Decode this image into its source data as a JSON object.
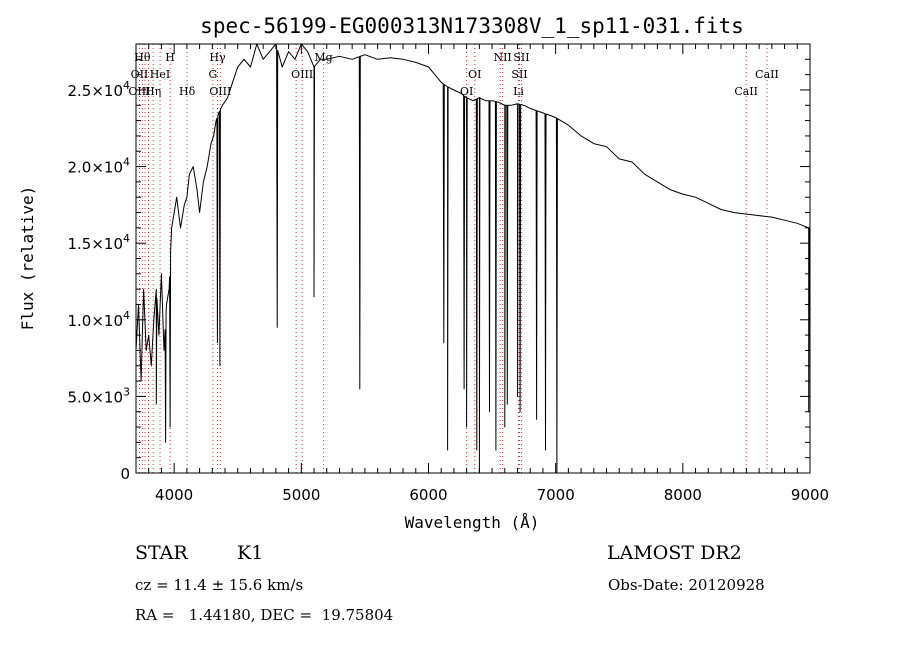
{
  "chart_data": {
    "type": "line",
    "title": "spec-56199-EG000313N173308V_1_sp11-031.fits",
    "xlabel": "Wavelength (Å)",
    "ylabel": "Flux (relative)",
    "xlim": [
      3700,
      9000
    ],
    "ylim": [
      0,
      28000
    ],
    "grid": false,
    "legend": "none",
    "x_ticks": [
      {
        "value": 4000,
        "label": "4000"
      },
      {
        "value": 5000,
        "label": "5000"
      },
      {
        "value": 6000,
        "label": "6000"
      },
      {
        "value": 7000,
        "label": "7000"
      },
      {
        "value": 8000,
        "label": "8000"
      },
      {
        "value": 9000,
        "label": "9000"
      }
    ],
    "y_ticks": [
      {
        "value": 0,
        "mant": "0",
        "exp": ""
      },
      {
        "value": 5000,
        "mant": "5.0×10",
        "exp": "3"
      },
      {
        "value": 10000,
        "mant": "1.0×10",
        "exp": "4"
      },
      {
        "value": 15000,
        "mant": "1.5×10",
        "exp": "4"
      },
      {
        "value": 20000,
        "mant": "2.0×10",
        "exp": "4"
      },
      {
        "value": 25000,
        "mant": "2.5×10",
        "exp": "4"
      }
    ],
    "series": [
      {
        "x": [
          3700,
          3720,
          3740,
          3760,
          3780,
          3800,
          3820,
          3840,
          3860,
          3880,
          3900,
          3920,
          3940,
          3960,
          3980,
          4000,
          4020,
          4050,
          4080,
          4100,
          4120,
          4150,
          4180,
          4200,
          4230,
          4260,
          4290,
          4310,
          4330,
          4350,
          4380,
          4420,
          4460,
          4500,
          4550,
          4600,
          4650,
          4700,
          4750,
          4800,
          4850,
          4900,
          4950,
          5000,
          5050,
          5100,
          5150,
          5200,
          5300,
          5400,
          5500,
          5600,
          5700,
          5800,
          5900,
          6000,
          6050,
          6100,
          6150,
          6200,
          6250,
          6300,
          6350,
          6400,
          6450,
          6500,
          6550,
          6600,
          6650,
          6700,
          6750,
          6800,
          6900,
          7000,
          7100,
          7200,
          7300,
          7400,
          7500,
          7600,
          7700,
          7800,
          7900,
          8000,
          8100,
          8200,
          8300,
          8400,
          8500,
          8600,
          8700,
          8800,
          8900,
          8990
        ],
        "y": [
          8000,
          11000,
          6000,
          12000,
          8000,
          9000,
          7000,
          10000,
          12000,
          9000,
          13000,
          8000,
          11000,
          12000,
          16000,
          17000,
          18000,
          16000,
          17500,
          18000,
          19500,
          20000,
          18500,
          17000,
          19000,
          20000,
          21500,
          22000,
          23000,
          23500,
          24000,
          24500,
          25500,
          26500,
          27000,
          26500,
          28000,
          27000,
          27500,
          28000,
          26500,
          27500,
          27000,
          28000,
          27500,
          26500,
          27000,
          27000,
          27200,
          27000,
          27300,
          27000,
          27100,
          27000,
          26800,
          26500,
          26000,
          25500,
          25200,
          25000,
          24800,
          24500,
          24300,
          24500,
          24300,
          24300,
          24200,
          24000,
          24000,
          24100,
          24000,
          23800,
          23500,
          23200,
          22700,
          22000,
          21500,
          21300,
          20500,
          20300,
          19500,
          19000,
          18500,
          18200,
          18000,
          17600,
          17200,
          17000,
          16900,
          16800,
          16700,
          16500,
          16300,
          16000
        ]
      }
    ],
    "absorption_dips": [
      {
        "x": 3860,
        "y": 4500
      },
      {
        "x": 3933,
        "y": 2000
      },
      {
        "x": 3968,
        "y": 3000
      },
      {
        "x": 4340,
        "y": 8500
      },
      {
        "x": 4360,
        "y": 7000
      },
      {
        "x": 4810,
        "y": 9500
      },
      {
        "x": 5100,
        "y": 11500
      },
      {
        "x": 5460,
        "y": 5500
      },
      {
        "x": 6120,
        "y": 8500
      },
      {
        "x": 6150,
        "y": 1500
      },
      {
        "x": 6280,
        "y": 5500
      },
      {
        "x": 6300,
        "y": 3000
      },
      {
        "x": 6380,
        "y": 1500
      },
      {
        "x": 6400,
        "y": 0
      },
      {
        "x": 6480,
        "y": 4000
      },
      {
        "x": 6530,
        "y": 1500
      },
      {
        "x": 6600,
        "y": 3000
      },
      {
        "x": 6620,
        "y": 4500
      },
      {
        "x": 6700,
        "y": 5000
      },
      {
        "x": 6720,
        "y": 4000
      },
      {
        "x": 6850,
        "y": 3500
      },
      {
        "x": 6920,
        "y": 1500
      },
      {
        "x": 7010,
        "y": 0
      },
      {
        "x": 8990,
        "y": 4000
      }
    ],
    "line_markers": [
      {
        "x": 3727,
        "labels": [
          {
            "text": "OII",
            "row": 2
          },
          {
            "text": "OIII",
            "row": 3
          }
        ]
      },
      {
        "x": 3750,
        "labels": [
          {
            "text": "Hθ",
            "row": 1
          }
        ]
      },
      {
        "x": 3771,
        "labels": []
      },
      {
        "x": 3798,
        "labels": []
      },
      {
        "x": 3835,
        "labels": [
          {
            "text": "Hη",
            "row": 3
          }
        ]
      },
      {
        "x": 3889,
        "labels": [
          {
            "text": "HeI",
            "row": 2
          }
        ]
      },
      {
        "x": 3968,
        "labels": [
          {
            "text": "H",
            "row": 1
          }
        ]
      },
      {
        "x": 4102,
        "labels": [
          {
            "text": "Hδ",
            "row": 3
          }
        ]
      },
      {
        "x": 4305,
        "labels": [
          {
            "text": "G",
            "row": 2
          }
        ]
      },
      {
        "x": 4341,
        "labels": [
          {
            "text": "Hγ",
            "row": 1
          }
        ]
      },
      {
        "x": 4363,
        "labels": [
          {
            "text": "OIII",
            "row": 3
          }
        ]
      },
      {
        "x": 4959,
        "labels": []
      },
      {
        "x": 5007,
        "labels": [
          {
            "text": "OIII",
            "row": 2
          }
        ]
      },
      {
        "x": 5175,
        "labels": [
          {
            "text": "Mg",
            "row": 1
          }
        ]
      },
      {
        "x": 6300,
        "labels": [
          {
            "text": "OI",
            "row": 3
          }
        ]
      },
      {
        "x": 6364,
        "labels": [
          {
            "text": "OI",
            "row": 2
          }
        ]
      },
      {
        "x": 6563,
        "labels": []
      },
      {
        "x": 6583,
        "labels": [
          {
            "text": "NII",
            "row": 1
          }
        ]
      },
      {
        "x": 6708,
        "labels": [
          {
            "text": "Li",
            "row": 3
          }
        ]
      },
      {
        "x": 6716,
        "labels": [
          {
            "text": "SII",
            "row": 2
          }
        ]
      },
      {
        "x": 6731,
        "labels": [
          {
            "text": "SII",
            "row": 1
          }
        ]
      },
      {
        "x": 8498,
        "labels": [
          {
            "text": "CaII",
            "row": 3
          }
        ]
      },
      {
        "x": 8662,
        "labels": [
          {
            "text": "CaII",
            "row": 2
          }
        ]
      }
    ]
  },
  "info": {
    "object_class": "STAR",
    "subclass": "K1",
    "survey": "LAMOST DR2",
    "cz": "cz = 11.4 ± 15.6 km/s",
    "obs_date": "Obs-Date: 20120928",
    "coords": "RA =   1.44180, DEC =  19.75804"
  },
  "colors": {
    "axis": "#000000",
    "spectrum": "#000000",
    "marker": "#cc2222"
  }
}
